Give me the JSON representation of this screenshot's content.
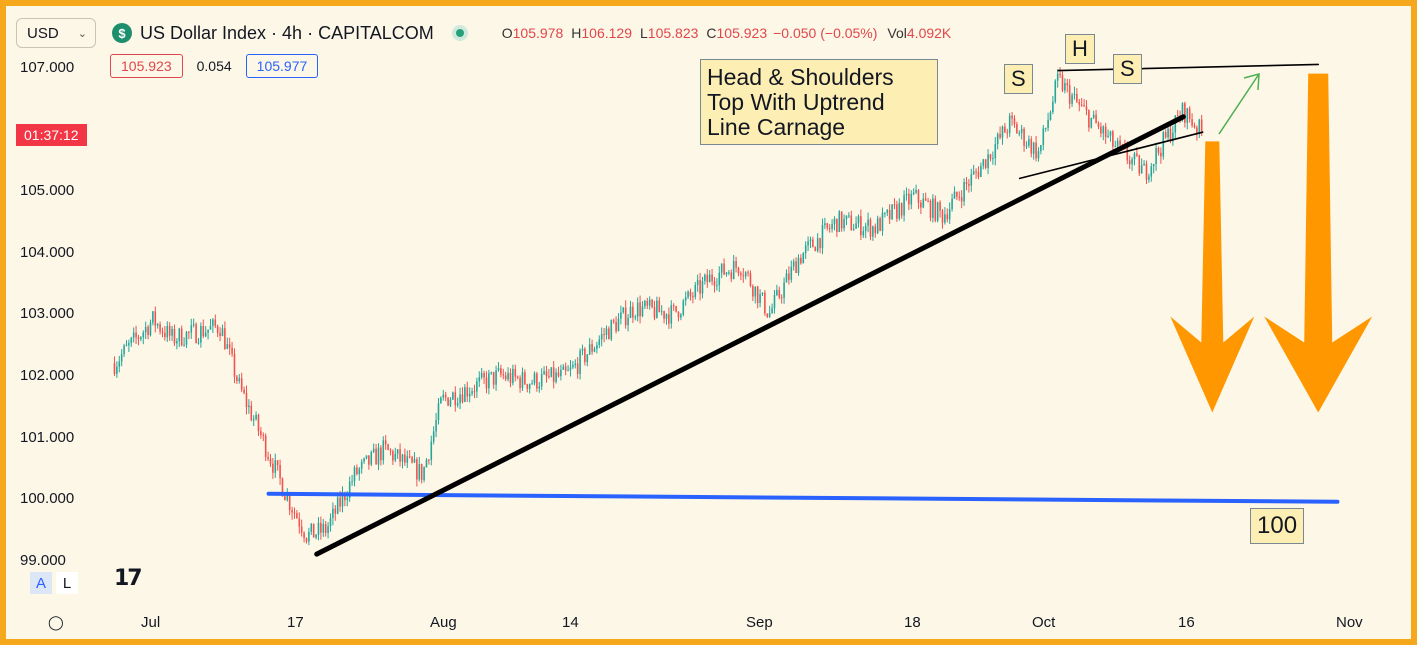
{
  "toolbar": {
    "currency": "USD",
    "logo_glyph": "$",
    "title": "US Dollar Index · 4h · CAPITALCOM",
    "ohlc": {
      "o_key": "O",
      "o": "105.978",
      "h_key": "H",
      "h": "106.129",
      "l_key": "L",
      "l": "105.823",
      "c_key": "C",
      "c": "105.923",
      "change": "−0.050 (−0.05%)",
      "vol_key": "Vol",
      "vol": "4.092K"
    }
  },
  "quote": {
    "bid": "105.923",
    "spread": "0.054",
    "ask": "105.977"
  },
  "countdown": "01:37:12",
  "price_axis": [
    "107.000",
    "105.000",
    "104.000",
    "103.000",
    "102.000",
    "101.000",
    "100.000",
    "99.000"
  ],
  "time_axis": [
    "Jul",
    "17",
    "Aug",
    "14",
    "Sep",
    "18",
    "Oct",
    "16",
    "Nov"
  ],
  "scale_buttons": {
    "auto": "A",
    "log": "L"
  },
  "brand_logo": "17",
  "annotations": {
    "pattern_note": [
      "Head & Shoulders",
      "Top With Uptrend",
      "Line Carnage"
    ],
    "left_shoulder": "S",
    "head": "H",
    "right_shoulder": "S",
    "target": "100"
  },
  "colors": {
    "up": "#26a69a",
    "down": "#ef5350",
    "trendline": "#000000",
    "support": "#2962ff",
    "arrows": "#ff9800",
    "frame": "#f6a81c"
  },
  "chart_data": {
    "type": "candlestick",
    "title": "US Dollar Index · 4h · CAPITALCOM",
    "interval": "4h",
    "ylim": [
      98.8,
      107.4
    ],
    "x_ticks": [
      "Jul",
      "17",
      "Aug",
      "14",
      "Sep",
      "18",
      "Oct",
      "16",
      "Nov"
    ],
    "y_ticks": [
      99,
      100,
      101,
      102,
      103,
      104,
      105,
      107
    ],
    "series": [
      {
        "name": "close_path_approx",
        "points": [
          [
            "Jun 27",
            102.2
          ],
          [
            "Jul 1",
            102.9
          ],
          [
            "Jul 3",
            102.6
          ],
          [
            "Jul 8",
            102.8
          ],
          [
            "Jul 10",
            101.8
          ],
          [
            "Jul 12",
            101.1
          ],
          [
            "Jul 15",
            100.0
          ],
          [
            "Jul 17",
            99.4
          ],
          [
            "Jul 19",
            99.5
          ],
          [
            "Jul 22",
            100.4
          ],
          [
            "Jul 25",
            100.8
          ],
          [
            "Jul 29",
            100.4
          ],
          [
            "Jul 31",
            101.6
          ],
          [
            "Aug 3",
            101.8
          ],
          [
            "Aug 6",
            102.0
          ],
          [
            "Aug 9",
            101.9
          ],
          [
            "Aug 13",
            102.0
          ],
          [
            "Aug 17",
            102.7
          ],
          [
            "Aug 20",
            103.1
          ],
          [
            "Aug 24",
            103.0
          ],
          [
            "Aug 28",
            103.6
          ],
          [
            "Aug 31",
            103.8
          ],
          [
            "Sep 3",
            103.0
          ],
          [
            "Sep 6",
            103.9
          ],
          [
            "Sep 10",
            104.5
          ],
          [
            "Sep 14",
            104.4
          ],
          [
            "Sep 18",
            104.9
          ],
          [
            "Sep 21",
            104.6
          ],
          [
            "Sep 25",
            105.4
          ],
          [
            "Sep 28",
            106.1
          ],
          [
            "Oct 1",
            105.6
          ],
          [
            "Oct 3",
            106.8
          ],
          [
            "Oct 5",
            106.4
          ],
          [
            "Oct 9",
            105.7
          ],
          [
            "Oct 12",
            105.3
          ],
          [
            "Oct 16",
            106.3
          ],
          [
            "Oct 18",
            105.92
          ]
        ]
      }
    ],
    "last": {
      "open": 105.978,
      "high": 106.129,
      "low": 105.823,
      "close": 105.923,
      "change": -0.05,
      "change_pct": -0.05,
      "volume": "4.092K"
    },
    "drawings": {
      "uptrend_line": {
        "from": [
          "Jul 18",
          99.1
        ],
        "to": [
          "Oct 16",
          106.2
        ]
      },
      "neckline": {
        "from": [
          "Sep 29",
          105.2
        ],
        "to": [
          "Oct 18",
          105.95
        ]
      },
      "resistance": {
        "from": [
          "Oct 3",
          106.95
        ],
        "to": [
          "Oct 30",
          107.05
        ]
      },
      "support_100": {
        "from": [
          "Jul 13",
          100.08
        ],
        "to": [
          "Nov 1",
          99.95
        ]
      },
      "target_arrows": [
        {
          "from": [
            "Oct 19",
            105.8
          ],
          "to": [
            "Oct 20",
            101.4
          ]
        },
        {
          "from": [
            "Oct 30",
            106.9
          ],
          "to": [
            "Oct 31",
            101.4
          ]
        }
      ]
    }
  }
}
